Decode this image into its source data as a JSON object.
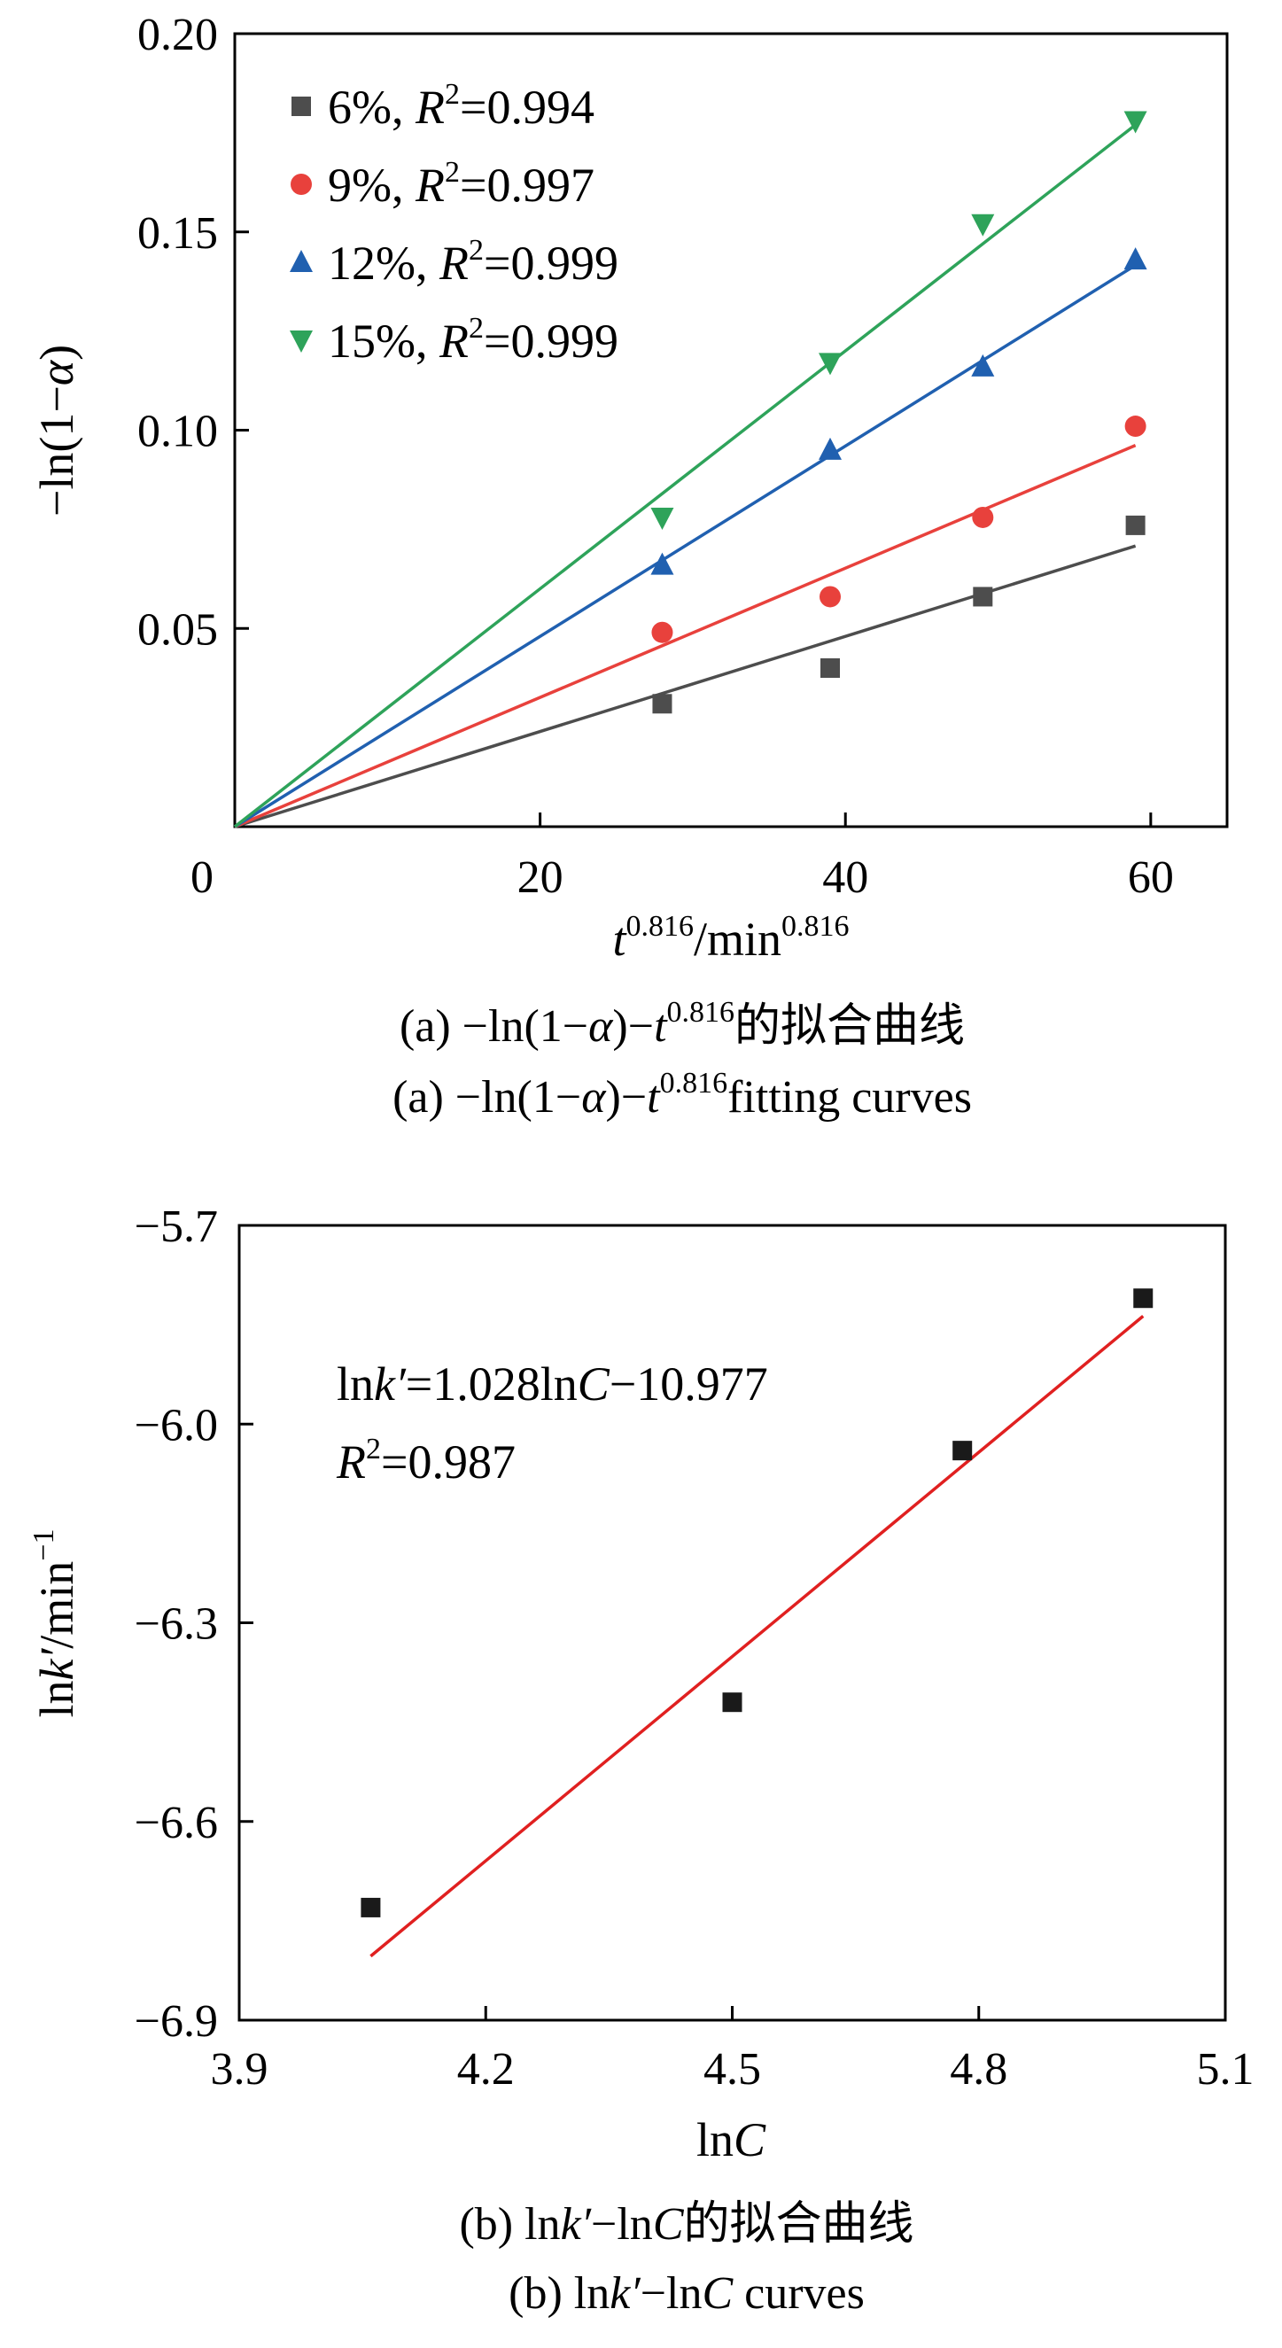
{
  "chart_data": [
    {
      "type": "scatter",
      "panel": "a",
      "xlabel": "t0.816/min0.816",
      "ylabel": "−ln(1−α)",
      "xlim": [
        0,
        65
      ],
      "ylim": [
        0,
        0.2
      ],
      "xticks": [
        "0",
        "20",
        "40",
        "60"
      ],
      "yticks": [
        "0.05",
        "0.10",
        "0.15",
        "0.20"
      ],
      "x": [
        28,
        39,
        49,
        59
      ],
      "series": [
        {
          "name": "6%, R2=0.994",
          "label_pct": "6%",
          "label_r2": "=0.994",
          "marker": "square",
          "color": "#4d4d4d",
          "values": [
            0.031,
            0.04,
            0.058,
            0.076
          ],
          "fit_slope": 0.0012
        },
        {
          "name": "9%, R2=0.997",
          "label_pct": "9%",
          "label_r2": "=0.997",
          "marker": "circle",
          "color": "#e8413c",
          "values": [
            0.049,
            0.058,
            0.078,
            0.101
          ],
          "fit_slope": 0.00163
        },
        {
          "name": "12%, R2=0.999",
          "label_pct": "12%",
          "label_r2": "=0.999",
          "marker": "triangle-up",
          "color": "#2060b0",
          "values": [
            0.066,
            0.095,
            0.116,
            0.143
          ],
          "fit_slope": 0.0024
        },
        {
          "name": "15%, R2=0.999",
          "label_pct": "15%",
          "label_r2": "=0.999",
          "marker": "triangle-down",
          "color": "#2ea35a",
          "values": [
            0.078,
            0.117,
            0.152,
            0.178
          ],
          "fit_slope": 0.003
        }
      ],
      "legend": "top-left",
      "caption_cn": "(a) −ln(1−α)−t0.816的拟合曲线",
      "caption_en": "(a) −ln(1−α)−t0.816fitting curves"
    },
    {
      "type": "scatter",
      "panel": "b",
      "xlabel": "lnC",
      "ylabel": "lnk′/min−1",
      "xlim": [
        3.9,
        5.1
      ],
      "ylim": [
        -6.9,
        -5.7
      ],
      "xticks": [
        "3.9",
        "4.2",
        "4.5",
        "4.8",
        "5.1"
      ],
      "yticks": [
        "−6.9",
        "−6.6",
        "−6.3",
        "−6.0",
        "−5.7"
      ],
      "points": {
        "x": [
          4.06,
          4.5,
          4.78,
          5.0
        ],
        "y": [
          -6.73,
          -6.42,
          -6.04,
          -5.81
        ]
      },
      "fit": {
        "slope": 1.028,
        "intercept": -10.977
      },
      "marker_color": "#1a1a1a",
      "fit_color": "#e02020",
      "equation": "lnk′=1.028lnC−10.977",
      "r2_text": "R2=0.987",
      "caption_cn": "(b) lnk′−lnC的拟合曲线",
      "caption_en": "(b) lnk′−lnC curves"
    }
  ]
}
